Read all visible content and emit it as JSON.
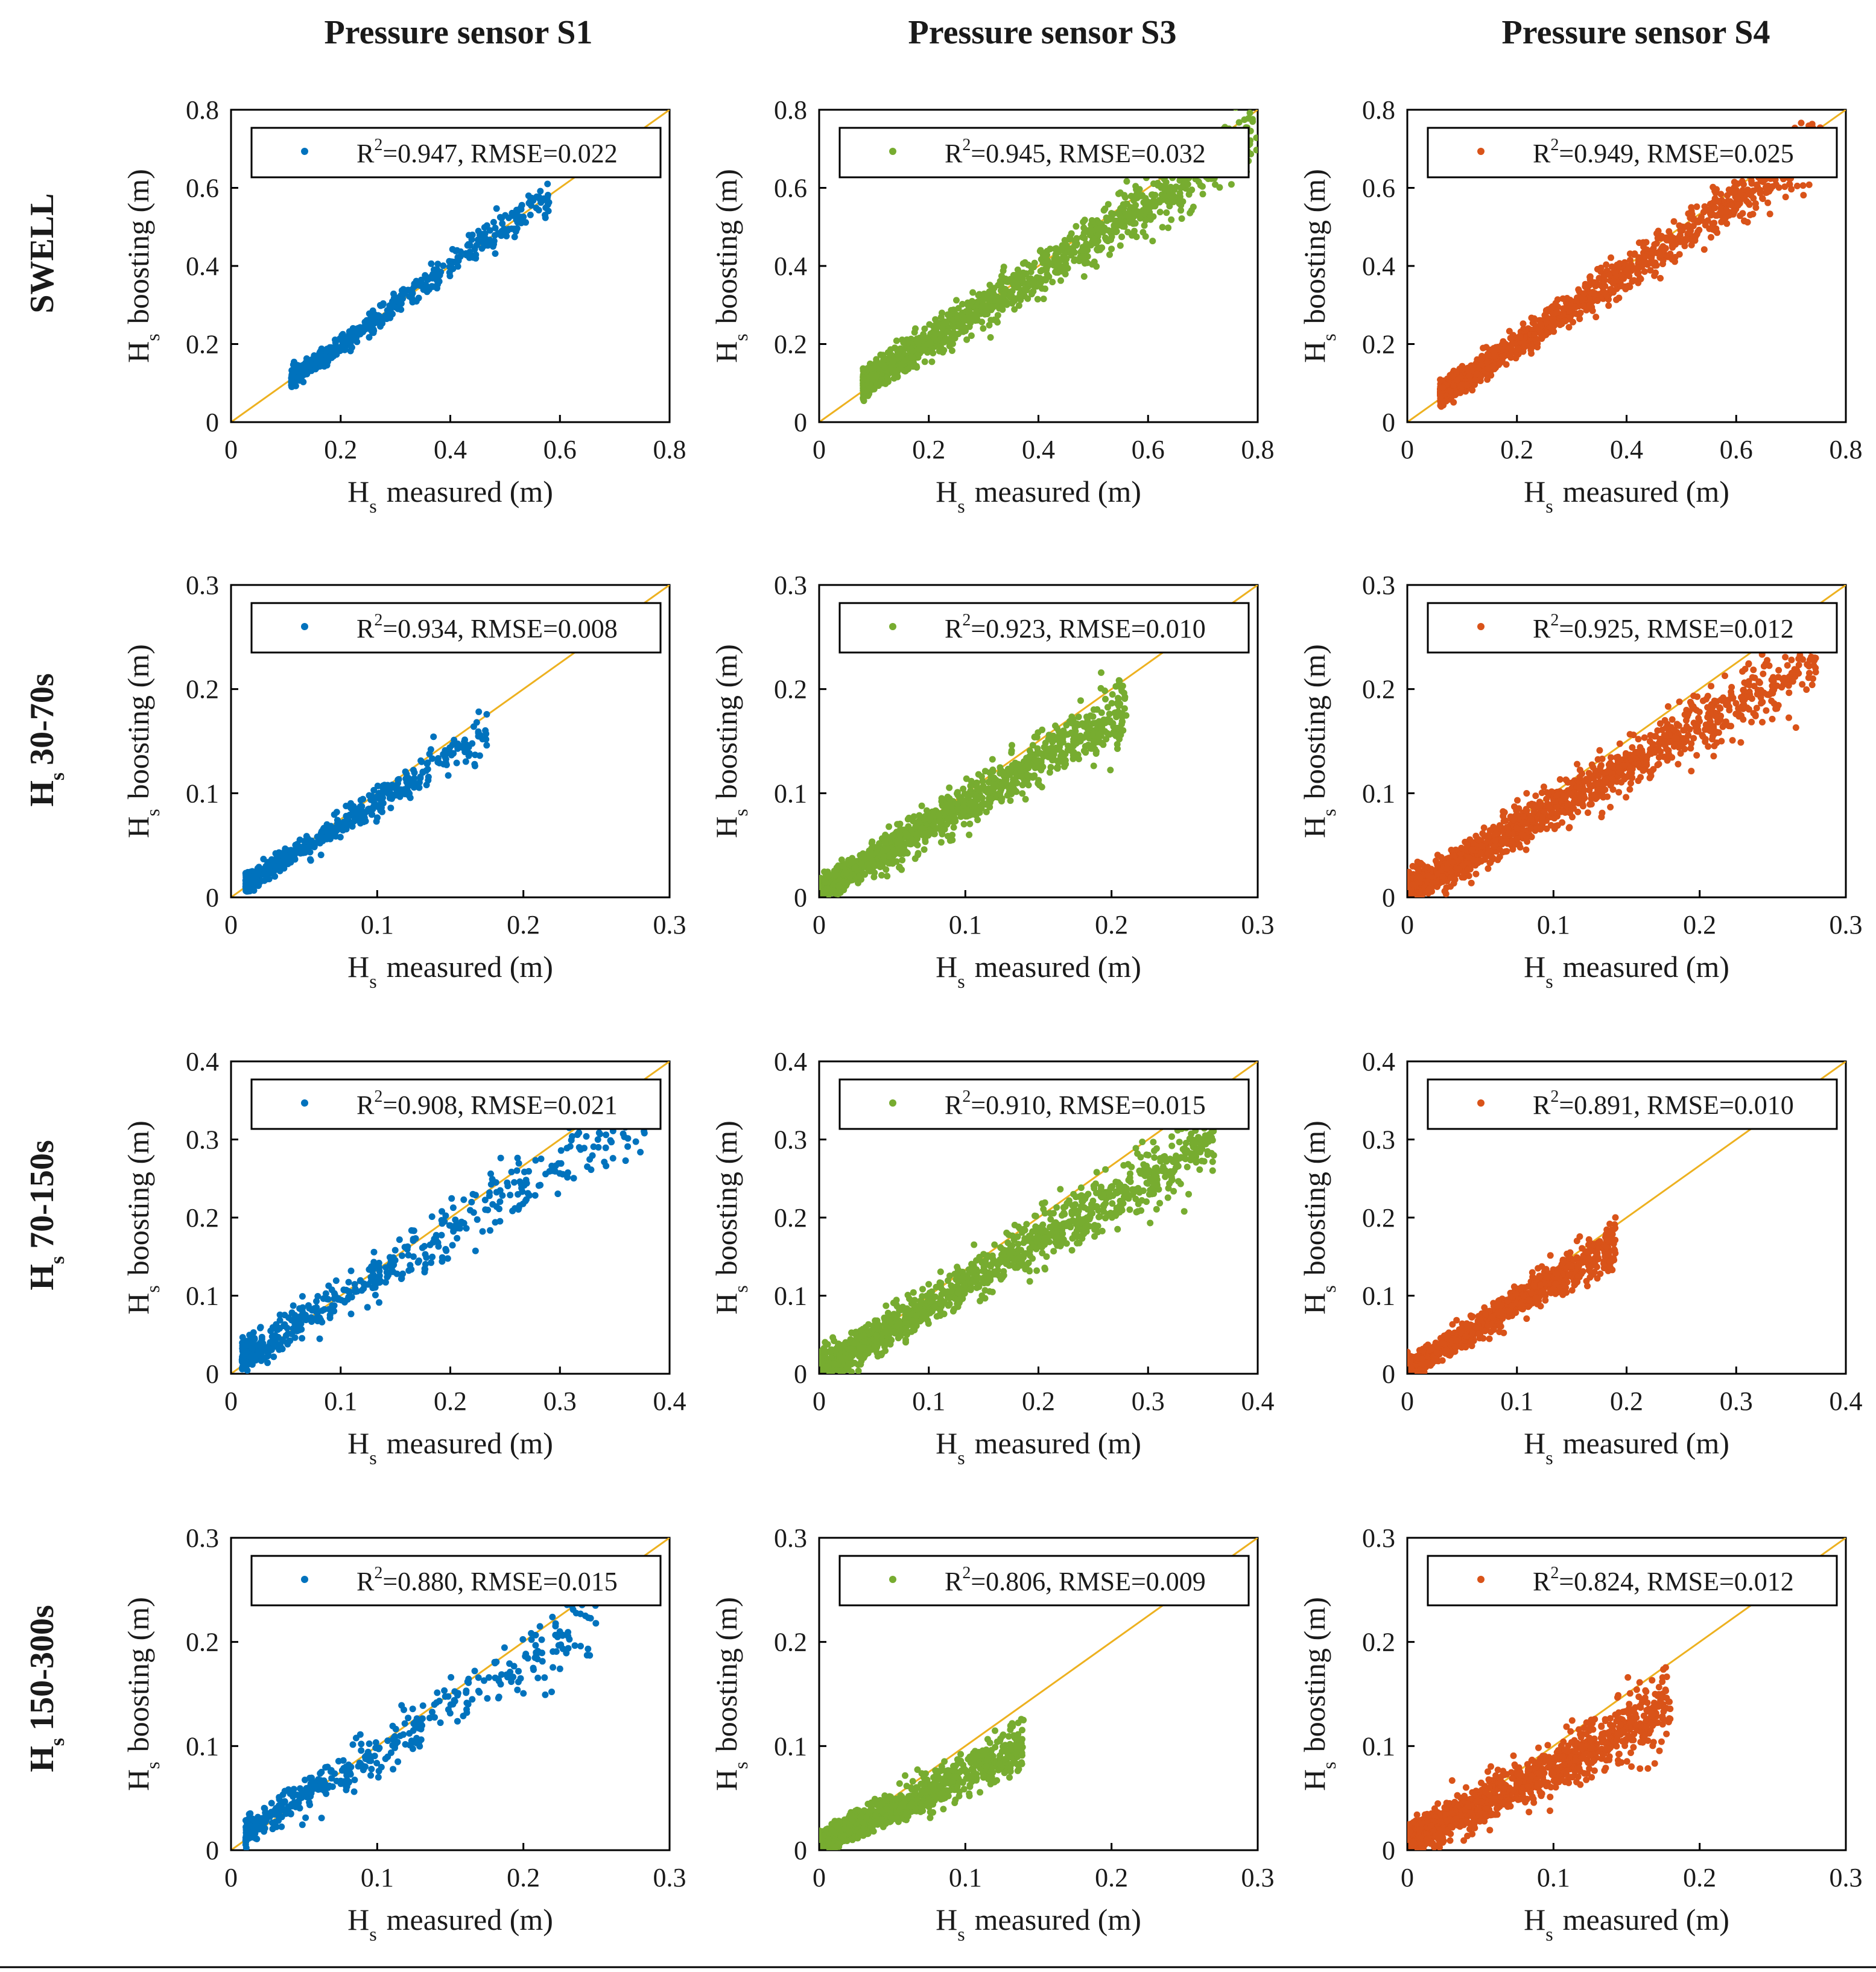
{
  "figure": {
    "column_titles": [
      "Pressure sensor S1",
      "Pressure sensor S3",
      "Pressure sensor S4"
    ],
    "row_labels": [
      {
        "main": "SWELL",
        "sub": ""
      },
      {
        "main": "H",
        "sub": "s",
        "suffix": "30-70s"
      },
      {
        "main": "H",
        "sub": "s",
        "suffix": "70-150s"
      },
      {
        "main": "H",
        "sub": "s",
        "suffix": "150-300s"
      }
    ],
    "xlabel": {
      "main": "H",
      "sub": "s",
      "rest": "measured (m)"
    },
    "ylabel": {
      "main": "H",
      "sub": "s",
      "rest": "boosting (m)"
    },
    "reference_line": "y = x",
    "colors": {
      "S1": "#0072BD",
      "S3": "#77AC30",
      "S4": "#D95319",
      "reference_line": "#EDB120",
      "frame": "#000000"
    }
  },
  "chart_data": [
    {
      "type": "scatter",
      "row": "SWELL",
      "column": "Pressure sensor S1",
      "series_color": "#0072BD",
      "xlim": [
        0,
        0.8
      ],
      "ylim": [
        0,
        0.8
      ],
      "xticks": [
        "0",
        "0.2",
        "0.4",
        "0.6",
        "0.8"
      ],
      "yticks": [
        "0",
        "0.2",
        "0.4",
        "0.6",
        "0.8"
      ],
      "legend": {
        "r2_label": "R",
        "r2_sup": "2",
        "text": "=0.947, RMSE=0.022"
      },
      "R2": 0.947,
      "RMSE": 0.022,
      "x_range": [
        0.11,
        0.58
      ],
      "trend": {
        "slope": 1.0,
        "intercept": 0.0
      },
      "spread": 0.018,
      "n_points": 520,
      "seed": 11
    },
    {
      "type": "scatter",
      "row": "SWELL",
      "column": "Pressure sensor S3",
      "series_color": "#77AC30",
      "xlim": [
        0,
        0.8
      ],
      "ylim": [
        0,
        0.8
      ],
      "xticks": [
        "0",
        "0.2",
        "0.4",
        "0.6",
        "0.8"
      ],
      "yticks": [
        "0",
        "0.2",
        "0.4",
        "0.6",
        "0.8"
      ],
      "legend": {
        "r2_label": "R",
        "r2_sup": "2",
        "text": "=0.945, RMSE=0.032"
      },
      "R2": 0.945,
      "RMSE": 0.032,
      "x_range": [
        0.08,
        0.8
      ],
      "trend": {
        "slope": 0.88,
        "intercept": 0.03
      },
      "spread": 0.03,
      "n_points": 1300,
      "seed": 12
    },
    {
      "type": "scatter",
      "row": "SWELL",
      "column": "Pressure sensor S4",
      "series_color": "#D95319",
      "xlim": [
        0,
        0.8
      ],
      "ylim": [
        0,
        0.8
      ],
      "xticks": [
        "0",
        "0.2",
        "0.4",
        "0.6",
        "0.8"
      ],
      "yticks": [
        "0",
        "0.2",
        "0.4",
        "0.6",
        "0.8"
      ],
      "legend": {
        "r2_label": "R",
        "r2_sup": "2",
        "text": "=0.949, RMSE=0.025"
      },
      "R2": 0.949,
      "RMSE": 0.025,
      "x_range": [
        0.06,
        0.76
      ],
      "trend": {
        "slope": 0.92,
        "intercept": 0.015
      },
      "spread": 0.025,
      "n_points": 1300,
      "seed": 13
    },
    {
      "type": "scatter",
      "row": "Hs 30-70s",
      "column": "Pressure sensor S1",
      "series_color": "#0072BD",
      "xlim": [
        0,
        0.3
      ],
      "ylim": [
        0,
        0.3
      ],
      "xticks": [
        "0",
        "0.1",
        "0.2",
        "0.3"
      ],
      "yticks": [
        "0",
        "0.1",
        "0.2",
        "0.3"
      ],
      "legend": {
        "r2_label": "R",
        "r2_sup": "2",
        "text": "=0.934, RMSE=0.008"
      },
      "R2": 0.934,
      "RMSE": 0.008,
      "x_range": [
        0.01,
        0.175
      ],
      "trend": {
        "slope": 0.88,
        "intercept": 0.004
      },
      "spread": 0.007,
      "n_points": 520,
      "seed": 21
    },
    {
      "type": "scatter",
      "row": "Hs 30-70s",
      "column": "Pressure sensor S3",
      "series_color": "#77AC30",
      "xlim": [
        0,
        0.3
      ],
      "ylim": [
        0,
        0.3
      ],
      "xticks": [
        "0",
        "0.1",
        "0.2",
        "0.3"
      ],
      "yticks": [
        "0",
        "0.1",
        "0.2",
        "0.3"
      ],
      "legend": {
        "r2_label": "R",
        "r2_sup": "2",
        "text": "=0.923, RMSE=0.010"
      },
      "R2": 0.923,
      "RMSE": 0.01,
      "x_range": [
        0.0,
        0.21
      ],
      "trend": {
        "slope": 0.83,
        "intercept": 0.006
      },
      "spread": 0.01,
      "n_points": 1300,
      "seed": 22
    },
    {
      "type": "scatter",
      "row": "Hs 30-70s",
      "column": "Pressure sensor S4",
      "series_color": "#D95319",
      "xlim": [
        0,
        0.3
      ],
      "ylim": [
        0,
        0.3
      ],
      "xticks": [
        "0",
        "0.1",
        "0.2",
        "0.3"
      ],
      "yticks": [
        "0",
        "0.1",
        "0.2",
        "0.3"
      ],
      "legend": {
        "r2_label": "R",
        "r2_sup": "2",
        "text": "=0.925, RMSE=0.012"
      },
      "R2": 0.925,
      "RMSE": 0.012,
      "x_range": [
        0.0,
        0.28
      ],
      "trend": {
        "slope": 0.8,
        "intercept": 0.006
      },
      "spread": 0.012,
      "n_points": 1400,
      "seed": 23
    },
    {
      "type": "scatter",
      "row": "Hs 70-150s",
      "column": "Pressure sensor S1",
      "series_color": "#0072BD",
      "xlim": [
        0,
        0.4
      ],
      "ylim": [
        0,
        0.4
      ],
      "xticks": [
        "0",
        "0.1",
        "0.2",
        "0.3",
        "0.4"
      ],
      "yticks": [
        "0",
        "0.1",
        "0.2",
        "0.3",
        "0.4"
      ],
      "legend": {
        "r2_label": "R",
        "r2_sup": "2",
        "text": "=0.908, RMSE=0.021"
      },
      "R2": 0.908,
      "RMSE": 0.021,
      "x_range": [
        0.01,
        0.38
      ],
      "trend": {
        "slope": 0.85,
        "intercept": 0.012
      },
      "spread": 0.018,
      "n_points": 480,
      "seed": 31
    },
    {
      "type": "scatter",
      "row": "Hs 70-150s",
      "column": "Pressure sensor S3",
      "series_color": "#77AC30",
      "xlim": [
        0,
        0.4
      ],
      "ylim": [
        0,
        0.4
      ],
      "xticks": [
        "0",
        "0.1",
        "0.2",
        "0.3",
        "0.4"
      ],
      "yticks": [
        "0",
        "0.1",
        "0.2",
        "0.3",
        "0.4"
      ],
      "legend": {
        "r2_label": "R",
        "r2_sup": "2",
        "text": "=0.910, RMSE=0.015"
      },
      "R2": 0.91,
      "RMSE": 0.015,
      "x_range": [
        0.0,
        0.36
      ],
      "trend": {
        "slope": 0.82,
        "intercept": 0.006
      },
      "spread": 0.016,
      "n_points": 1300,
      "seed": 32
    },
    {
      "type": "scatter",
      "row": "Hs 70-150s",
      "column": "Pressure sensor S4",
      "series_color": "#D95319",
      "xlim": [
        0,
        0.4
      ],
      "ylim": [
        0,
        0.4
      ],
      "xticks": [
        "0",
        "0.1",
        "0.2",
        "0.3",
        "0.4"
      ],
      "yticks": [
        "0",
        "0.1",
        "0.2",
        "0.3",
        "0.4"
      ],
      "legend": {
        "r2_label": "R",
        "r2_sup": "2",
        "text": "=0.891, RMSE=0.010"
      },
      "R2": 0.891,
      "RMSE": 0.01,
      "x_range": [
        0.0,
        0.19
      ],
      "trend": {
        "slope": 0.85,
        "intercept": 0.006
      },
      "spread": 0.01,
      "n_points": 1100,
      "seed": 33
    },
    {
      "type": "scatter",
      "row": "Hs 150-300s",
      "column": "Pressure sensor S1",
      "series_color": "#0072BD",
      "xlim": [
        0,
        0.3
      ],
      "ylim": [
        0,
        0.3
      ],
      "xticks": [
        "0",
        "0.1",
        "0.2",
        "0.3"
      ],
      "yticks": [
        "0",
        "0.1",
        "0.2",
        "0.3"
      ],
      "legend": {
        "r2_label": "R",
        "r2_sup": "2",
        "text": "=0.880, RMSE=0.015"
      },
      "R2": 0.88,
      "RMSE": 0.015,
      "x_range": [
        0.01,
        0.25
      ],
      "trend": {
        "slope": 0.86,
        "intercept": 0.008
      },
      "spread": 0.012,
      "n_points": 420,
      "seed": 41
    },
    {
      "type": "scatter",
      "row": "Hs 150-300s",
      "column": "Pressure sensor S3",
      "series_color": "#77AC30",
      "xlim": [
        0,
        0.3
      ],
      "ylim": [
        0,
        0.3
      ],
      "xticks": [
        "0",
        "0.1",
        "0.2",
        "0.3"
      ],
      "yticks": [
        "0",
        "0.1",
        "0.2",
        "0.3"
      ],
      "legend": {
        "r2_label": "R",
        "r2_sup": "2",
        "text": "=0.806, RMSE=0.009"
      },
      "R2": 0.806,
      "RMSE": 0.009,
      "x_range": [
        0.0,
        0.14
      ],
      "trend": {
        "slope": 0.68,
        "intercept": 0.006
      },
      "spread": 0.009,
      "n_points": 1000,
      "seed": 42
    },
    {
      "type": "scatter",
      "row": "Hs 150-300s",
      "column": "Pressure sensor S4",
      "series_color": "#D95319",
      "xlim": [
        0,
        0.3
      ],
      "ylim": [
        0,
        0.3
      ],
      "xticks": [
        "0",
        "0.1",
        "0.2",
        "0.3"
      ],
      "yticks": [
        "0",
        "0.1",
        "0.2",
        "0.3"
      ],
      "legend": {
        "r2_label": "R",
        "r2_sup": "2",
        "text": "=0.824, RMSE=0.012"
      },
      "R2": 0.824,
      "RMSE": 0.012,
      "x_range": [
        0.0,
        0.18
      ],
      "trend": {
        "slope": 0.72,
        "intercept": 0.008
      },
      "spread": 0.012,
      "n_points": 1300,
      "seed": 43
    }
  ]
}
